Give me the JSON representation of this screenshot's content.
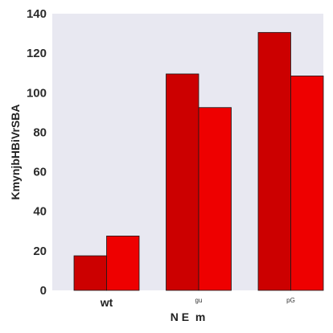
{
  "chart_data": {
    "type": "bar",
    "title": "",
    "xlabel": "N E  m",
    "ylabel": "KmynjbHBiVrSBA",
    "categories": [
      "wt",
      "gu",
      "pG"
    ],
    "category_label_style": [
      "big",
      "small",
      "small"
    ],
    "series": [
      {
        "values": [
          17.5,
          109.5,
          130.5
        ],
        "color": "#cc0000"
      },
      {
        "values": [
          27.5,
          92.5,
          108.5
        ],
        "color": "#ee0000"
      }
    ],
    "ylim": [
      0,
      140
    ],
    "yticks": [
      0,
      20,
      40,
      60,
      80,
      100,
      120,
      140
    ],
    "grid": false,
    "legend": "none",
    "background_color": "#e8e8f1"
  }
}
